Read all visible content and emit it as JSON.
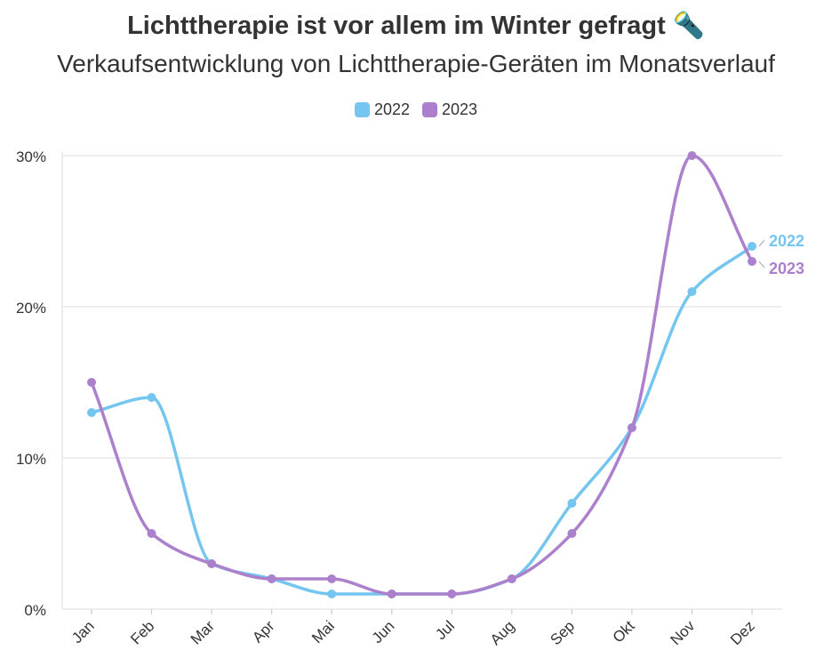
{
  "header": {
    "title": "Lichttherapie ist vor allem im Winter gefragt 🔦",
    "subtitle": "Verkaufsentwicklung von Lichttherapie-Geräten im Monatsverlauf"
  },
  "colors": {
    "s2022": "#74c6f0",
    "s2023": "#ac80cc",
    "grid": "#e8e8e8",
    "text": "#333333"
  },
  "chart_data": {
    "type": "line",
    "categories": [
      "Jan",
      "Feb",
      "Mar",
      "Apr",
      "Mai",
      "Jun",
      "Jul",
      "Aug",
      "Sep",
      "Okt",
      "Nov",
      "Dez"
    ],
    "series": [
      {
        "name": "2022",
        "values": [
          13,
          14,
          3,
          2,
          1,
          1,
          1,
          2,
          7,
          12,
          21,
          24
        ]
      },
      {
        "name": "2023",
        "values": [
          15,
          5,
          3,
          2,
          2,
          1,
          1,
          2,
          5,
          12,
          30,
          23
        ]
      }
    ],
    "y_ticks": [
      "0%",
      "10%",
      "20%",
      "30%"
    ],
    "ylim": [
      0,
      30
    ],
    "grid": true,
    "legend": "top-center",
    "end_labels": [
      "2022",
      "2023"
    ]
  }
}
